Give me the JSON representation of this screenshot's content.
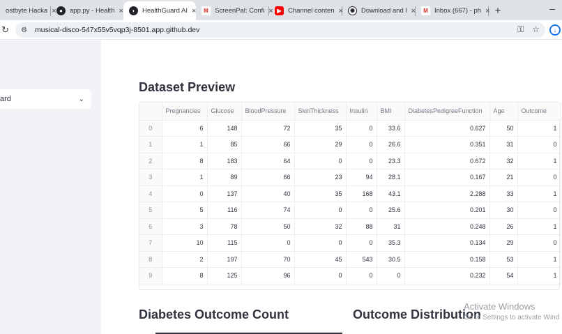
{
  "browser": {
    "tabs": [
      {
        "label": "ostbyte Hacka",
        "favicon": "",
        "active": false
      },
      {
        "label": "app.py - Health",
        "favicon": "github-icon",
        "active": false
      },
      {
        "label": "HealthGuard AI",
        "favicon": "streamlit-icon",
        "active": true
      },
      {
        "label": "ScreenPal: Confi",
        "favicon": "gmail-icon",
        "active": false
      },
      {
        "label": "Channel conten",
        "favicon": "youtube-icon",
        "active": false
      },
      {
        "label": "Download and l",
        "favicon": "openai-icon",
        "active": false
      },
      {
        "label": "Inbox (667) - ph",
        "favicon": "gmail-icon",
        "active": false
      }
    ],
    "close_glyph": "×",
    "new_tab_glyph": "+",
    "minimize_glyph": "–",
    "url": "musical-disco-547x55v5vqp3j-8501.app.github.dev"
  },
  "sidebar": {
    "select_value": "ard"
  },
  "main": {
    "preview_title": "Dataset Preview",
    "count_title": "Diabetes Outcome Count",
    "distribution_title": "Outcome Distribution"
  },
  "table": {
    "columns": [
      "Pregnancies",
      "Glucose",
      "BloodPressure",
      "SkinThickness",
      "Insulin",
      "BMI",
      "DiabetesPedigreeFunction",
      "Age",
      "Outcome"
    ],
    "rows": [
      {
        "idx": "0",
        "cells": [
          "6",
          "148",
          "72",
          "35",
          "0",
          "33.6",
          "0.627",
          "50",
          "1"
        ]
      },
      {
        "idx": "1",
        "cells": [
          "1",
          "85",
          "66",
          "29",
          "0",
          "26.6",
          "0.351",
          "31",
          "0"
        ]
      },
      {
        "idx": "2",
        "cells": [
          "8",
          "183",
          "64",
          "0",
          "0",
          "23.3",
          "0.672",
          "32",
          "1"
        ]
      },
      {
        "idx": "3",
        "cells": [
          "1",
          "89",
          "66",
          "23",
          "94",
          "28.1",
          "0.167",
          "21",
          "0"
        ]
      },
      {
        "idx": "4",
        "cells": [
          "0",
          "137",
          "40",
          "35",
          "168",
          "43.1",
          "2.288",
          "33",
          "1"
        ]
      },
      {
        "idx": "5",
        "cells": [
          "5",
          "116",
          "74",
          "0",
          "0",
          "25.6",
          "0.201",
          "30",
          "0"
        ]
      },
      {
        "idx": "6",
        "cells": [
          "3",
          "78",
          "50",
          "32",
          "88",
          "31",
          "0.248",
          "26",
          "1"
        ]
      },
      {
        "idx": "7",
        "cells": [
          "10",
          "115",
          "0",
          "0",
          "0",
          "35.3",
          "0.134",
          "29",
          "0"
        ]
      },
      {
        "idx": "8",
        "cells": [
          "2",
          "197",
          "70",
          "45",
          "543",
          "30.5",
          "0.158",
          "53",
          "1"
        ]
      },
      {
        "idx": "9",
        "cells": [
          "8",
          "125",
          "96",
          "0",
          "0",
          "0",
          "0.232",
          "54",
          "1"
        ]
      }
    ]
  },
  "watermark": {
    "line1": "Activate Windows",
    "line2": "Go to Settings to activate Wind"
  },
  "colors": {
    "sidebar_bg": "#f0f2f6",
    "text": "#31333f",
    "accent": "#1a73e8"
  }
}
